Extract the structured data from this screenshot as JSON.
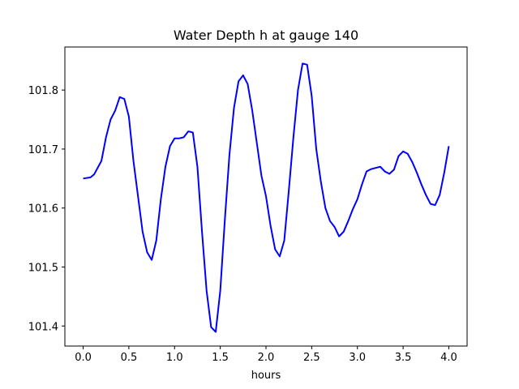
{
  "chart_data": {
    "type": "line",
    "title": "Water Depth h at gauge 140",
    "xlabel": "hours",
    "ylabel": "",
    "xlim": [
      -0.2,
      4.2
    ],
    "ylim": [
      101.366,
      101.873
    ],
    "xticks": [
      0.0,
      0.5,
      1.0,
      1.5,
      2.0,
      2.5,
      3.0,
      3.5,
      4.0
    ],
    "xtick_labels": [
      "0.0",
      "0.5",
      "1.0",
      "1.5",
      "2.0",
      "2.5",
      "3.0",
      "3.5",
      "4.0"
    ],
    "yticks": [
      101.4,
      101.5,
      101.6,
      101.7,
      101.8
    ],
    "ytick_labels": [
      "101.4",
      "101.5",
      "101.6",
      "101.7",
      "101.8"
    ],
    "grid": false,
    "series": [
      {
        "color": "#0000ff",
        "x": [
          0.0,
          0.08,
          0.12,
          0.2,
          0.25,
          0.3,
          0.35,
          0.4,
          0.45,
          0.5,
          0.55,
          0.6,
          0.65,
          0.7,
          0.75,
          0.8,
          0.85,
          0.9,
          0.95,
          1.0,
          1.05,
          1.1,
          1.15,
          1.2,
          1.25,
          1.3,
          1.35,
          1.4,
          1.45,
          1.5,
          1.55,
          1.6,
          1.65,
          1.7,
          1.75,
          1.8,
          1.85,
          1.9,
          1.95,
          2.0,
          2.05,
          2.1,
          2.15,
          2.2,
          2.25,
          2.3,
          2.35,
          2.4,
          2.45,
          2.5,
          2.55,
          2.6,
          2.65,
          2.7,
          2.75,
          2.8,
          2.85,
          2.9,
          2.95,
          3.0,
          3.05,
          3.1,
          3.15,
          3.2,
          3.25,
          3.3,
          3.35,
          3.4,
          3.45,
          3.5,
          3.55,
          3.6,
          3.65,
          3.7,
          3.75,
          3.8,
          3.85,
          3.9,
          3.95,
          4.0
        ],
        "y": [
          101.65,
          101.652,
          101.657,
          101.68,
          101.72,
          101.75,
          101.765,
          101.788,
          101.785,
          101.755,
          101.68,
          101.62,
          101.56,
          101.525,
          101.512,
          101.545,
          101.615,
          101.67,
          101.705,
          101.718,
          101.718,
          101.72,
          101.73,
          101.728,
          101.67,
          101.56,
          101.46,
          101.398,
          101.39,
          101.46,
          101.58,
          101.69,
          101.77,
          101.815,
          101.825,
          101.81,
          101.765,
          101.71,
          101.655,
          101.62,
          101.57,
          101.53,
          101.518,
          101.545,
          101.63,
          101.72,
          101.8,
          101.845,
          101.843,
          101.79,
          101.7,
          101.645,
          101.6,
          101.578,
          101.568,
          101.552,
          101.56,
          101.578,
          101.598,
          101.615,
          101.64,
          101.662,
          101.666,
          101.668,
          101.67,
          101.662,
          101.658,
          101.665,
          101.688,
          101.696,
          101.692,
          101.678,
          101.66,
          101.64,
          101.622,
          101.607,
          101.605,
          101.622,
          101.66,
          101.705
        ]
      }
    ]
  }
}
